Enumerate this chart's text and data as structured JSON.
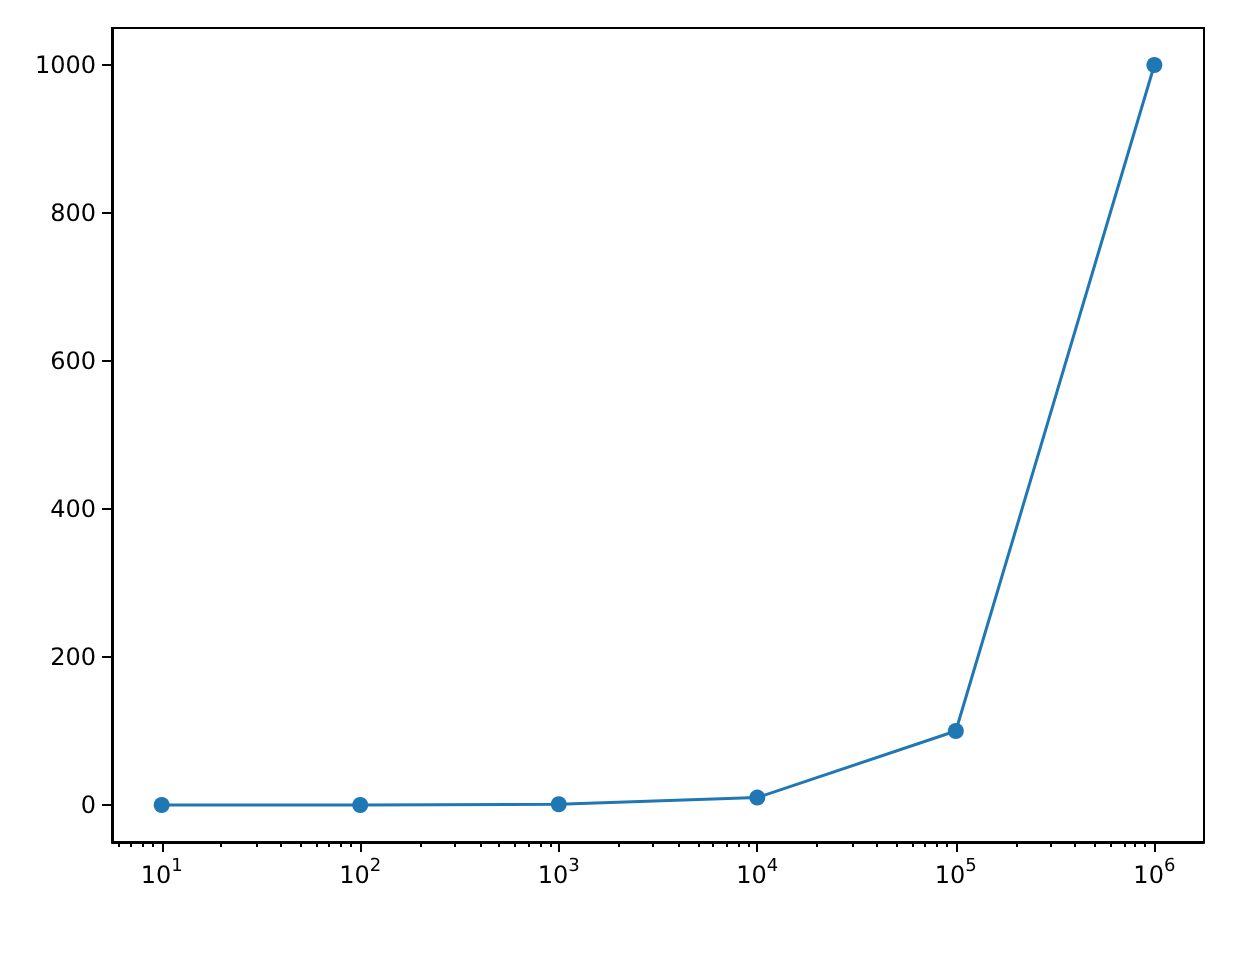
{
  "chart_data": {
    "type": "line",
    "log": "x",
    "x": [
      10,
      100,
      1000,
      10000,
      100000,
      1000000
    ],
    "series": [
      {
        "color": "#1f77b4",
        "values": [
          0,
          0,
          1,
          10,
          100,
          1000
        ]
      }
    ],
    "marker": "circle",
    "line_style": "solid",
    "grid": false,
    "xlim": [
      5.62,
      1778279
    ],
    "ylim": [
      -50,
      1050
    ],
    "yticks": [
      0,
      200,
      400,
      600,
      800,
      1000
    ],
    "xticks": [
      {
        "value": 10,
        "label": "10$^{1}$"
      },
      {
        "value": 100,
        "label": "10$^{2}$"
      },
      {
        "value": 1000,
        "label": "10$^{3}$"
      },
      {
        "value": 10000,
        "label": "10$^{4}$"
      },
      {
        "value": 100000,
        "label": "10$^{5}$"
      },
      {
        "value": 1000000,
        "label": "10$^{6}$"
      },
      {
        "value": 6,
        "label": null
      },
      {
        "value": 7,
        "label": null
      },
      {
        "value": 8,
        "label": null
      },
      {
        "value": 9,
        "label": null
      },
      {
        "value": 20,
        "label": null
      },
      {
        "value": 30,
        "label": null
      },
      {
        "value": 40,
        "label": null
      },
      {
        "value": 50,
        "label": null
      },
      {
        "value": 60,
        "label": null
      },
      {
        "value": 70,
        "label": null
      },
      {
        "value": 80,
        "label": null
      },
      {
        "value": 90,
        "label": null
      },
      {
        "value": 200,
        "label": null
      },
      {
        "value": 300,
        "label": null
      },
      {
        "value": 400,
        "label": null
      },
      {
        "value": 500,
        "label": null
      },
      {
        "value": 600,
        "label": null
      },
      {
        "value": 700,
        "label": null
      },
      {
        "value": 800,
        "label": null
      },
      {
        "value": 900,
        "label": null
      },
      {
        "value": 2000,
        "label": null
      },
      {
        "value": 3000,
        "label": null
      },
      {
        "value": 4000,
        "label": null
      },
      {
        "value": 5000,
        "label": null
      },
      {
        "value": 6000,
        "label": null
      },
      {
        "value": 7000,
        "label": null
      },
      {
        "value": 8000,
        "label": null
      },
      {
        "value": 9000,
        "label": null
      },
      {
        "value": 20000,
        "label": null
      },
      {
        "value": 30000,
        "label": null
      },
      {
        "value": 40000,
        "label": null
      },
      {
        "value": 50000,
        "label": null
      },
      {
        "value": 60000,
        "label": null
      },
      {
        "value": 70000,
        "label": null
      },
      {
        "value": 80000,
        "label": null
      },
      {
        "value": 90000,
        "label": null
      },
      {
        "value": 200000,
        "label": null
      },
      {
        "value": 300000,
        "label": null
      },
      {
        "value": 400000,
        "label": null
      },
      {
        "value": 500000,
        "label": null
      },
      {
        "value": 600000,
        "label": null
      },
      {
        "value": 700000,
        "label": null
      },
      {
        "value": 800000,
        "label": null
      },
      {
        "value": 900000,
        "label": null
      }
    ]
  }
}
